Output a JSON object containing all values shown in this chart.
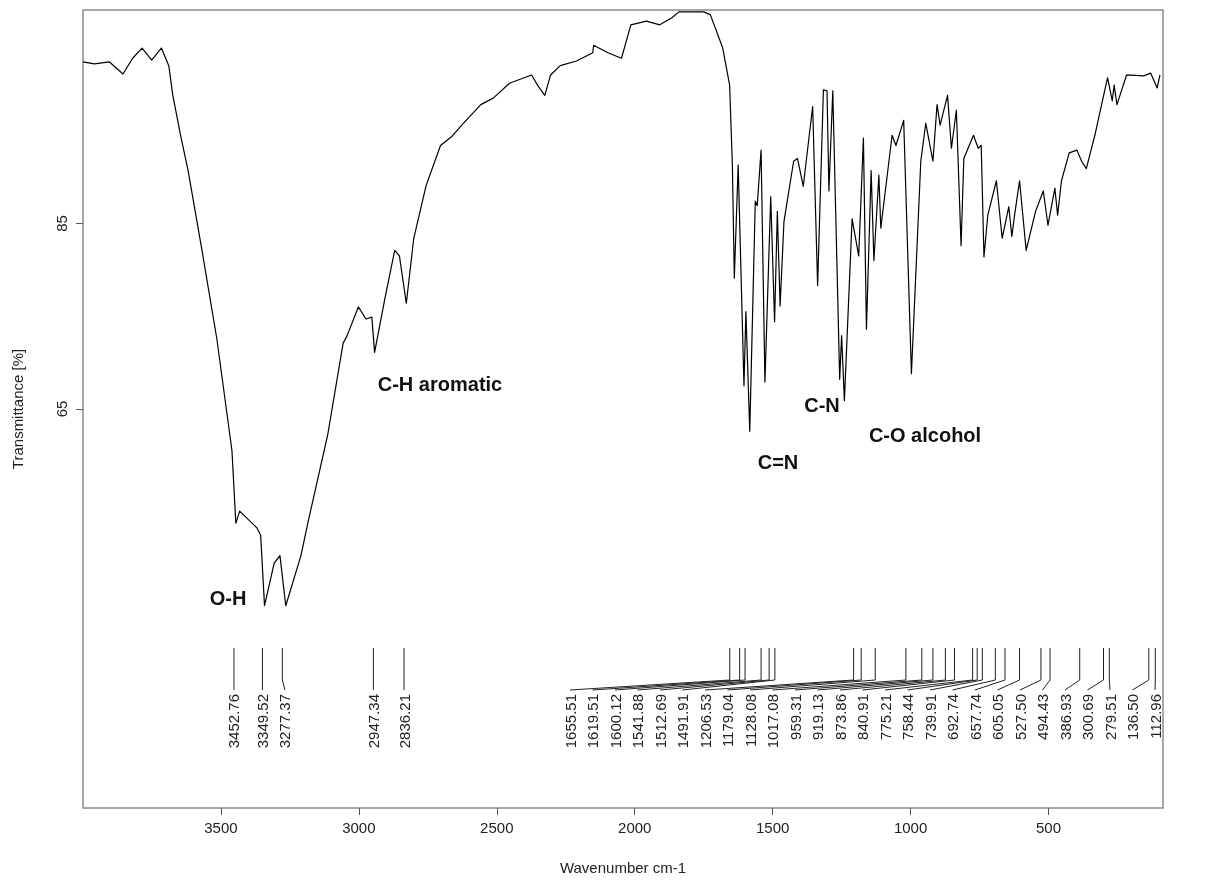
{
  "chart_data": {
    "type": "line",
    "xlabel": "Wavenumber cm-1",
    "ylabel": "Transmittance [%]",
    "xlim": [
      4000,
      85
    ],
    "xticks": [
      3500,
      3000,
      2500,
      2000,
      1500,
      1000,
      500
    ],
    "ylim": [
      22,
      108
    ],
    "yticks": [
      65,
      85
    ],
    "color": "#000000",
    "x": [
      4000,
      3959,
      3904,
      3855,
      3820,
      3786,
      3751,
      3716,
      3689,
      3675,
      3647,
      3619,
      3571,
      3515,
      3460,
      3446,
      3432,
      3370,
      3356,
      3342,
      3307,
      3286,
      3265,
      3210,
      3182,
      3113,
      3057,
      3044,
      3002,
      2974,
      2953,
      2943,
      2905,
      2870,
      2853,
      2828,
      2801,
      2756,
      2704,
      2662,
      2627,
      2558,
      2513,
      2454,
      2374,
      2350,
      2326,
      2305,
      2270,
      2211,
      2152,
      2149,
      2097,
      2048,
      2014,
      1958,
      1909,
      1864,
      1840,
      1750,
      1726,
      1681,
      1656,
      1646,
      1639,
      1625,
      1604,
      1597,
      1583,
      1563,
      1556,
      1542,
      1528,
      1507,
      1493,
      1483,
      1473,
      1459,
      1424,
      1410,
      1389,
      1355,
      1337,
      1316,
      1303,
      1296,
      1282,
      1257,
      1250,
      1240,
      1212,
      1188,
      1171,
      1160,
      1143,
      1133,
      1115,
      1108,
      1067,
      1053,
      1025,
      997,
      963,
      945,
      919,
      904,
      893,
      866,
      852,
      834,
      817,
      807,
      772,
      755,
      744,
      734,
      720,
      689,
      668,
      644,
      633,
      623,
      605,
      581,
      547,
      519,
      502,
      477,
      467,
      453,
      425,
      397,
      380,
      363,
      332,
      301,
      286,
      269,
      262,
      252,
      217,
      155,
      130,
      106,
      96
    ],
    "values": [
      102.4,
      102.2,
      102.4,
      101.1,
      102.8,
      103.9,
      102.6,
      103.9,
      102.0,
      98.9,
      94.6,
      90.7,
      82.5,
      72.6,
      60.5,
      52.7,
      54.0,
      52.2,
      51.4,
      43.8,
      48.4,
      49.2,
      43.8,
      49.2,
      53.1,
      62.2,
      72.1,
      72.8,
      76.0,
      74.7,
      74.9,
      71.1,
      77.0,
      82.1,
      81.5,
      76.4,
      83.4,
      89.1,
      93.4,
      94.4,
      95.6,
      97.8,
      98.5,
      100.1,
      101.0,
      99.8,
      98.8,
      101.0,
      102.0,
      102.5,
      103.4,
      104.2,
      103.4,
      102.8,
      106.4,
      106.8,
      106.4,
      107.2,
      107.8,
      107.8,
      107.5,
      103.9,
      99.9,
      91.3,
      79.1,
      91.3,
      67.5,
      75.5,
      62.6,
      87.4,
      86.9,
      92.9,
      67.9,
      87.9,
      74.4,
      86.3,
      76.1,
      85.2,
      91.7,
      92.0,
      89.0,
      97.6,
      78.3,
      99.4,
      99.3,
      88.5,
      99.3,
      68.2,
      72.9,
      65.9,
      85.5,
      81.5,
      94.2,
      73.6,
      90.7,
      81.0,
      90.2,
      84.5,
      94.5,
      93.4,
      96.1,
      68.8,
      91.7,
      95.8,
      91.7,
      97.8,
      95.6,
      98.8,
      93.1,
      97.2,
      82.6,
      92.0,
      94.5,
      93.1,
      93.4,
      81.4,
      85.9,
      89.6,
      83.4,
      86.8,
      83.6,
      85.9,
      89.6,
      82.1,
      86.3,
      88.5,
      84.8,
      88.8,
      85.9,
      89.6,
      92.6,
      92.9,
      91.7,
      90.9,
      94.5,
      98.7,
      100.7,
      98.2,
      99.9,
      97.8,
      101.0,
      100.9,
      101.2,
      99.6,
      101.0
    ],
    "annotations": [
      "O-H",
      "C-H aromatic",
      "C=N",
      "C-N",
      "C-O alcohol",
      {
        "text": "3452.76",
        "x": 3452.76
      },
      {
        "text": "3349.52",
        "x": 3349.52
      },
      {
        "text": "3277.37",
        "x": 3277.37
      },
      {
        "text": "2947.34",
        "x": 2947.34
      },
      {
        "text": "2836.21",
        "x": 2836.21
      },
      {
        "text": "1655.51",
        "x": 1655.51
      },
      {
        "text": "1619.51",
        "x": 1619.51
      },
      {
        "text": "1600.12",
        "x": 1600.12
      },
      {
        "text": "1541.88",
        "x": 1541.88
      },
      {
        "text": "1512.69",
        "x": 1512.69
      },
      {
        "text": "1491.91",
        "x": 1491.91
      },
      {
        "text": "1206.53",
        "x": 1206.53
      },
      {
        "text": "1179.04",
        "x": 1179.04
      },
      {
        "text": "1128.08",
        "x": 1128.08
      },
      {
        "text": "1017.08",
        "x": 1017.08
      },
      {
        "text": "959.31",
        "x": 959.31
      },
      {
        "text": "919.13",
        "x": 919.13
      },
      {
        "text": "873.86",
        "x": 873.86
      },
      {
        "text": "840.91",
        "x": 840.91
      },
      {
        "text": "775.21",
        "x": 775.21
      },
      {
        "text": "758.44",
        "x": 758.44
      },
      {
        "text": "739.91",
        "x": 739.91
      },
      {
        "text": "692.74",
        "x": 692.74
      },
      {
        "text": "657.74",
        "x": 657.74
      },
      {
        "text": "605.05",
        "x": 605.05
      },
      {
        "text": "527.50",
        "x": 527.5
      },
      {
        "text": "494.43",
        "x": 494.43
      },
      {
        "text": "386.93",
        "x": 386.93
      },
      {
        "text": "300.69",
        "x": 300.69
      },
      {
        "text": "279.51",
        "x": 279.51
      },
      {
        "text": "136.50",
        "x": 136.5
      },
      {
        "text": "112.96",
        "x": 112.96
      }
    ]
  }
}
